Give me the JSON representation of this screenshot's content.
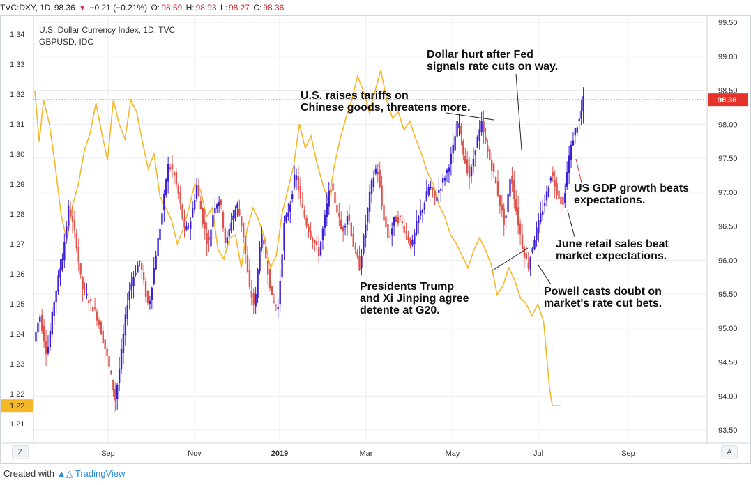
{
  "header": {
    "symbol": "TVC:DXY, 1D",
    "last": "98.36",
    "change": "−0.21 (−0.21%)",
    "o_label": "O:",
    "o_val": "98.59",
    "h_label": "H:",
    "h_val": "98.93",
    "l_label": "L:",
    "l_val": "98.27",
    "c_label": "C:",
    "c_val": "98.36"
  },
  "legend": {
    "main_series": "U.S. Dollar Currency Index, 1D, TVC",
    "compare_series": "GBPUSD, IDC"
  },
  "footer": {
    "created_with": "Created with",
    "brand": "TradingView"
  },
  "buttons": {
    "left": "Z",
    "right": "A"
  },
  "colors": {
    "up_candle": "#3c1fd6",
    "down_candle": "#e0514b",
    "gbpusd_line": "#f5b72a",
    "last_price": "#e6332a",
    "grid": "#e9ecef",
    "text": "#222222"
  },
  "chart_data": {
    "type": "line",
    "x_labels": [
      "Sep",
      "Nov",
      "2019",
      "Mar",
      "May",
      "Jul",
      "Sep"
    ],
    "right_axis": {
      "series": "U.S. Dollar Currency Index",
      "ticks": [
        "99.50",
        "99.00",
        "98.50",
        "98.00",
        "97.50",
        "97.00",
        "96.50",
        "96.00",
        "95.50",
        "95.00",
        "94.50",
        "94.00",
        "93.50"
      ],
      "ylim": [
        93.5,
        99.5
      ]
    },
    "left_axis": {
      "series": "GBPUSD",
      "ticks": [
        "1.34",
        "1.33",
        "1.32",
        "1.31",
        "1.30",
        "1.29",
        "1.28",
        "1.27",
        "1.26",
        "1.25",
        "1.24",
        "1.23",
        "1.22",
        "1.21"
      ],
      "ylim": [
        1.21,
        1.34
      ]
    },
    "last_price_label": "98.36",
    "last_price_value": 98.36,
    "gbp_last_label": "1.22",
    "gbp_last_value": 1.216,
    "dxy_keypoints": [
      [
        0,
        94.8
      ],
      [
        4,
        95.2
      ],
      [
        9,
        94.6
      ],
      [
        14,
        95.4
      ],
      [
        20,
        96.1
      ],
      [
        24,
        96.8
      ],
      [
        29,
        96.3
      ],
      [
        33,
        95.6
      ],
      [
        38,
        95.4
      ],
      [
        43,
        95.2
      ],
      [
        48,
        94.8
      ],
      [
        53,
        94.3
      ],
      [
        56,
        93.95
      ],
      [
        60,
        94.6
      ],
      [
        65,
        95.5
      ],
      [
        69,
        95.8
      ],
      [
        73,
        96.0
      ],
      [
        76,
        95.6
      ],
      [
        79,
        95.3
      ],
      [
        84,
        96.1
      ],
      [
        89,
        96.8
      ],
      [
        92,
        97.4
      ],
      [
        96,
        97.3
      ],
      [
        100,
        96.9
      ],
      [
        104,
        96.4
      ],
      [
        108,
        96.6
      ],
      [
        112,
        97.1
      ],
      [
        116,
        96.6
      ],
      [
        120,
        96.2
      ],
      [
        124,
        96.8
      ],
      [
        128,
        96.9
      ],
      [
        132,
        96.2
      ],
      [
        136,
        96.6
      ],
      [
        140,
        96.8
      ],
      [
        144,
        96.4
      ],
      [
        148,
        95.6
      ],
      [
        152,
        95.3
      ],
      [
        156,
        96.4
      ],
      [
        160,
        96.0
      ],
      [
        164,
        95.4
      ],
      [
        168,
        95.3
      ],
      [
        172,
        96.5
      ],
      [
        176,
        96.8
      ],
      [
        180,
        97.3
      ],
      [
        184,
        96.8
      ],
      [
        188,
        96.5
      ],
      [
        192,
        96.3
      ],
      [
        196,
        96.1
      ],
      [
        200,
        96.6
      ],
      [
        204,
        97.1
      ],
      [
        208,
        96.8
      ],
      [
        212,
        96.4
      ],
      [
        216,
        96.7
      ],
      [
        220,
        96.2
      ],
      [
        224,
        95.9
      ],
      [
        228,
        96.5
      ],
      [
        232,
        97.1
      ],
      [
        236,
        97.4
      ],
      [
        240,
        96.7
      ],
      [
        244,
        96.3
      ],
      [
        248,
        96.6
      ],
      [
        252,
        96.6
      ],
      [
        256,
        96.4
      ],
      [
        260,
        96.2
      ],
      [
        264,
        96.6
      ],
      [
        268,
        96.8
      ],
      [
        272,
        97.1
      ],
      [
        276,
        96.9
      ],
      [
        280,
        97.1
      ],
      [
        284,
        97.3
      ],
      [
        288,
        97.6
      ],
      [
        292,
        98.1
      ],
      [
        296,
        97.5
      ],
      [
        300,
        97.2
      ],
      [
        304,
        97.7
      ],
      [
        308,
        98.0
      ],
      [
        312,
        97.6
      ],
      [
        316,
        97.3
      ],
      [
        320,
        96.9
      ],
      [
        324,
        96.5
      ],
      [
        328,
        97.3
      ],
      [
        332,
        96.7
      ],
      [
        336,
        96.2
      ],
      [
        340,
        95.9
      ],
      [
        344,
        96.3
      ],
      [
        348,
        96.6
      ],
      [
        352,
        96.9
      ],
      [
        356,
        97.3
      ],
      [
        360,
        97.0
      ],
      [
        364,
        96.8
      ],
      [
        368,
        97.5
      ],
      [
        372,
        97.9
      ],
      [
        376,
        98.1
      ],
      [
        378,
        98.36
      ]
    ],
    "gbp_keypoints": [
      [
        0,
        1.321
      ],
      [
        3,
        1.304
      ],
      [
        6,
        1.318
      ],
      [
        10,
        1.31
      ],
      [
        14,
        1.296
      ],
      [
        18,
        1.28
      ],
      [
        22,
        1.271
      ],
      [
        26,
        1.283
      ],
      [
        30,
        1.29
      ],
      [
        34,
        1.301
      ],
      [
        38,
        1.307
      ],
      [
        42,
        1.317
      ],
      [
        46,
        1.307
      ],
      [
        50,
        1.298
      ],
      [
        54,
        1.318
      ],
      [
        58,
        1.31
      ],
      [
        62,
        1.305
      ],
      [
        66,
        1.318
      ],
      [
        70,
        1.314
      ],
      [
        74,
        1.304
      ],
      [
        78,
        1.295
      ],
      [
        82,
        1.3
      ],
      [
        86,
        1.286
      ],
      [
        90,
        1.282
      ],
      [
        94,
        1.278
      ],
      [
        98,
        1.27
      ],
      [
        102,
        1.275
      ],
      [
        106,
        1.282
      ],
      [
        110,
        1.29
      ],
      [
        114,
        1.288
      ],
      [
        118,
        1.279
      ],
      [
        122,
        1.282
      ],
      [
        126,
        1.268
      ],
      [
        130,
        1.265
      ],
      [
        134,
        1.272
      ],
      [
        138,
        1.273
      ],
      [
        142,
        1.262
      ],
      [
        146,
        1.275
      ],
      [
        150,
        1.282
      ],
      [
        154,
        1.278
      ],
      [
        158,
        1.272
      ],
      [
        162,
        1.262
      ],
      [
        166,
        1.266
      ],
      [
        170,
        1.28
      ],
      [
        174,
        1.288
      ],
      [
        178,
        1.296
      ],
      [
        182,
        1.31
      ],
      [
        186,
        1.302
      ],
      [
        190,
        1.306
      ],
      [
        194,
        1.297
      ],
      [
        198,
        1.29
      ],
      [
        202,
        1.284
      ],
      [
        206,
        1.296
      ],
      [
        210,
        1.305
      ],
      [
        214,
        1.312
      ],
      [
        218,
        1.318
      ],
      [
        222,
        1.326
      ],
      [
        226,
        1.321
      ],
      [
        230,
        1.314
      ],
      [
        234,
        1.321
      ],
      [
        238,
        1.328
      ],
      [
        242,
        1.318
      ],
      [
        246,
        1.312
      ],
      [
        250,
        1.314
      ],
      [
        254,
        1.308
      ],
      [
        258,
        1.311
      ],
      [
        262,
        1.305
      ],
      [
        266,
        1.3
      ],
      [
        270,
        1.294
      ],
      [
        274,
        1.29
      ],
      [
        278,
        1.283
      ],
      [
        282,
        1.279
      ],
      [
        286,
        1.273
      ],
      [
        290,
        1.27
      ],
      [
        294,
        1.266
      ],
      [
        298,
        1.262
      ],
      [
        302,
        1.268
      ],
      [
        306,
        1.272
      ],
      [
        310,
        1.268
      ],
      [
        314,
        1.263
      ],
      [
        318,
        1.253
      ],
      [
        322,
        1.256
      ],
      [
        326,
        1.262
      ],
      [
        330,
        1.258
      ],
      [
        334,
        1.252
      ],
      [
        338,
        1.25
      ],
      [
        342,
        1.246
      ],
      [
        346,
        1.25
      ],
      [
        350,
        1.244
      ],
      [
        352,
        1.233
      ],
      [
        354,
        1.222
      ],
      [
        356,
        1.216
      ],
      [
        362,
        1.216
      ]
    ],
    "annotations": [
      {
        "lines": [
          "Dollar hurt after Fed",
          "signals rate cuts on way."
        ]
      },
      {
        "lines": [
          "U.S. raises tariffs on",
          "Chinese goods, threatens more."
        ]
      },
      {
        "lines": [
          "US GDP growth beats",
          "expectations."
        ]
      },
      {
        "lines": [
          "June retail sales beat",
          "market expectations."
        ]
      },
      {
        "lines": [
          "Presidents Trump",
          "and Xi Jinping agree",
          "detente at G20."
        ]
      },
      {
        "lines": [
          "Powell casts doubt on",
          "market's rate cut bets."
        ]
      }
    ]
  }
}
